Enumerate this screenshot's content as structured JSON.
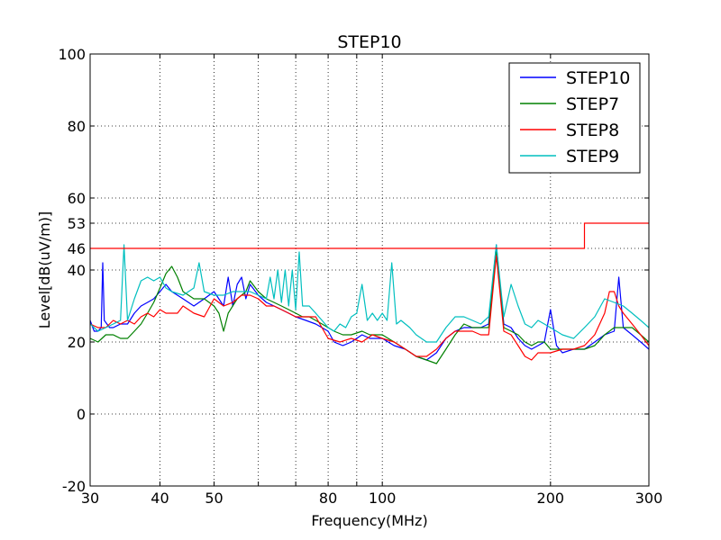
{
  "chart_data": {
    "type": "line",
    "title": "STEP10",
    "xlabel": "Frequency(MHz)",
    "ylabel": "Level[dB(uV/m)]",
    "xscale": "log",
    "xlim": [
      30,
      300
    ],
    "ylim": [
      -20,
      100
    ],
    "xticks": [
      30,
      40,
      50,
      60,
      70,
      80,
      90,
      100,
      200,
      300
    ],
    "xtick_labels": [
      "30",
      "40",
      "50",
      "",
      "",
      "80",
      "",
      "100",
      "200",
      "300"
    ],
    "yticks": [
      -20,
      0,
      20,
      40,
      46,
      53,
      60,
      80,
      100
    ],
    "ytick_labels": [
      "-20",
      "0",
      "20",
      "40",
      "46",
      "53",
      "60",
      "80",
      "100"
    ],
    "grid": true,
    "legend_position": "upper-right",
    "limit_line": {
      "color": "#ff0000",
      "points": [
        [
          30,
          46
        ],
        [
          230,
          46
        ],
        [
          230,
          53
        ],
        [
          300,
          53
        ]
      ]
    },
    "series": [
      {
        "name": "STEP10",
        "color": "#0000ff",
        "points": [
          [
            30,
            26
          ],
          [
            30.5,
            23
          ],
          [
            31,
            23
          ],
          [
            31.4,
            24
          ],
          [
            31.6,
            42
          ],
          [
            31.8,
            26
          ],
          [
            32.5,
            24
          ],
          [
            33,
            24
          ],
          [
            34,
            25
          ],
          [
            35,
            25
          ],
          [
            36,
            28
          ],
          [
            37,
            30
          ],
          [
            38,
            31
          ],
          [
            39,
            32
          ],
          [
            40,
            34
          ],
          [
            41,
            36
          ],
          [
            42,
            34
          ],
          [
            44,
            32
          ],
          [
            46,
            30
          ],
          [
            48,
            32
          ],
          [
            50,
            34
          ],
          [
            52,
            30
          ],
          [
            53,
            38
          ],
          [
            54,
            30
          ],
          [
            55,
            36
          ],
          [
            56,
            38
          ],
          [
            57,
            32
          ],
          [
            58,
            36
          ],
          [
            60,
            33
          ],
          [
            62,
            31
          ],
          [
            64,
            30
          ],
          [
            66,
            29
          ],
          [
            68,
            28
          ],
          [
            70,
            27
          ],
          [
            73,
            26
          ],
          [
            76,
            25
          ],
          [
            80,
            23
          ],
          [
            82,
            20
          ],
          [
            85,
            19
          ],
          [
            88,
            20
          ],
          [
            92,
            22
          ],
          [
            95,
            21
          ],
          [
            100,
            21
          ],
          [
            105,
            19
          ],
          [
            110,
            18
          ],
          [
            115,
            16
          ],
          [
            120,
            15
          ],
          [
            125,
            17
          ],
          [
            130,
            21
          ],
          [
            135,
            23
          ],
          [
            140,
            24
          ],
          [
            145,
            24
          ],
          [
            150,
            24
          ],
          [
            155,
            25
          ],
          [
            160,
            47
          ],
          [
            165,
            25
          ],
          [
            170,
            24
          ],
          [
            175,
            21
          ],
          [
            180,
            19
          ],
          [
            185,
            18
          ],
          [
            190,
            19
          ],
          [
            195,
            20
          ],
          [
            200,
            29
          ],
          [
            205,
            19
          ],
          [
            210,
            17
          ],
          [
            220,
            18
          ],
          [
            230,
            18
          ],
          [
            240,
            20
          ],
          [
            250,
            22
          ],
          [
            260,
            23
          ],
          [
            265,
            38
          ],
          [
            270,
            24
          ],
          [
            280,
            22
          ],
          [
            290,
            20
          ],
          [
            300,
            18
          ]
        ]
      },
      {
        "name": "STEP7",
        "color": "#008000",
        "points": [
          [
            30,
            21
          ],
          [
            31,
            20
          ],
          [
            32,
            22
          ],
          [
            33,
            22
          ],
          [
            34,
            21
          ],
          [
            35,
            21
          ],
          [
            36,
            23
          ],
          [
            37,
            25
          ],
          [
            38,
            28
          ],
          [
            39,
            31
          ],
          [
            40,
            35
          ],
          [
            41,
            39
          ],
          [
            42,
            41
          ],
          [
            43,
            38
          ],
          [
            44,
            34
          ],
          [
            45,
            33
          ],
          [
            46,
            32
          ],
          [
            48,
            32
          ],
          [
            50,
            30
          ],
          [
            51,
            28
          ],
          [
            52,
            23
          ],
          [
            53,
            28
          ],
          [
            55,
            32
          ],
          [
            57,
            34
          ],
          [
            58,
            37
          ],
          [
            60,
            34
          ],
          [
            62,
            32
          ],
          [
            64,
            31
          ],
          [
            66,
            30
          ],
          [
            68,
            29
          ],
          [
            70,
            28
          ],
          [
            72,
            27
          ],
          [
            74,
            27
          ],
          [
            76,
            26
          ],
          [
            78,
            25
          ],
          [
            80,
            24
          ],
          [
            82,
            23
          ],
          [
            85,
            22
          ],
          [
            88,
            22
          ],
          [
            92,
            23
          ],
          [
            95,
            22
          ],
          [
            100,
            22
          ],
          [
            105,
            20
          ],
          [
            110,
            18
          ],
          [
            115,
            16
          ],
          [
            120,
            15
          ],
          [
            125,
            14
          ],
          [
            130,
            18
          ],
          [
            135,
            22
          ],
          [
            140,
            25
          ],
          [
            145,
            24
          ],
          [
            150,
            24
          ],
          [
            155,
            24
          ],
          [
            160,
            45
          ],
          [
            165,
            24
          ],
          [
            170,
            23
          ],
          [
            175,
            22
          ],
          [
            180,
            20
          ],
          [
            185,
            19
          ],
          [
            190,
            20
          ],
          [
            195,
            20
          ],
          [
            200,
            18
          ],
          [
            210,
            18
          ],
          [
            220,
            18
          ],
          [
            230,
            18
          ],
          [
            240,
            19
          ],
          [
            250,
            22
          ],
          [
            260,
            24
          ],
          [
            270,
            24
          ],
          [
            280,
            24
          ],
          [
            290,
            22
          ],
          [
            300,
            20
          ]
        ]
      },
      {
        "name": "STEP8",
        "color": "#ff0000",
        "points": [
          [
            30,
            25
          ],
          [
            31,
            24
          ],
          [
            32,
            24
          ],
          [
            33,
            26
          ],
          [
            34,
            25
          ],
          [
            35,
            26
          ],
          [
            36,
            25
          ],
          [
            37,
            27
          ],
          [
            38,
            28
          ],
          [
            39,
            27
          ],
          [
            40,
            29
          ],
          [
            41,
            28
          ],
          [
            42,
            28
          ],
          [
            43,
            28
          ],
          [
            44,
            30
          ],
          [
            46,
            28
          ],
          [
            48,
            27
          ],
          [
            50,
            32
          ],
          [
            52,
            30
          ],
          [
            54,
            31
          ],
          [
            56,
            33
          ],
          [
            58,
            33
          ],
          [
            60,
            32
          ],
          [
            62,
            30
          ],
          [
            64,
            30
          ],
          [
            66,
            29
          ],
          [
            68,
            28
          ],
          [
            70,
            27
          ],
          [
            73,
            27
          ],
          [
            76,
            27
          ],
          [
            80,
            21
          ],
          [
            84,
            20
          ],
          [
            88,
            21
          ],
          [
            92,
            20
          ],
          [
            96,
            22
          ],
          [
            100,
            21
          ],
          [
            105,
            20
          ],
          [
            110,
            18
          ],
          [
            115,
            16
          ],
          [
            120,
            16
          ],
          [
            125,
            18
          ],
          [
            130,
            21
          ],
          [
            135,
            23
          ],
          [
            140,
            23
          ],
          [
            145,
            23
          ],
          [
            150,
            22
          ],
          [
            155,
            22
          ],
          [
            160,
            44
          ],
          [
            165,
            23
          ],
          [
            170,
            22
          ],
          [
            175,
            19
          ],
          [
            180,
            16
          ],
          [
            185,
            15
          ],
          [
            190,
            17
          ],
          [
            195,
            17
          ],
          [
            200,
            17
          ],
          [
            210,
            18
          ],
          [
            220,
            18
          ],
          [
            230,
            19
          ],
          [
            240,
            22
          ],
          [
            250,
            28
          ],
          [
            255,
            34
          ],
          [
            260,
            34
          ],
          [
            265,
            30
          ],
          [
            270,
            28
          ],
          [
            280,
            25
          ],
          [
            290,
            22
          ],
          [
            300,
            19
          ]
        ]
      },
      {
        "name": "STEP9",
        "color": "#00bfbf",
        "points": [
          [
            30,
            25
          ],
          [
            31,
            23
          ],
          [
            32,
            24
          ],
          [
            33,
            25
          ],
          [
            34,
            26
          ],
          [
            34.5,
            47
          ],
          [
            35,
            26
          ],
          [
            36,
            32
          ],
          [
            37,
            37
          ],
          [
            38,
            38
          ],
          [
            39,
            37
          ],
          [
            40,
            38
          ],
          [
            41,
            35
          ],
          [
            42,
            34
          ],
          [
            44,
            33
          ],
          [
            46,
            35
          ],
          [
            47,
            42
          ],
          [
            48,
            34
          ],
          [
            50,
            33
          ],
          [
            52,
            33
          ],
          [
            54,
            34
          ],
          [
            56,
            34
          ],
          [
            58,
            34
          ],
          [
            60,
            33
          ],
          [
            62,
            32
          ],
          [
            63,
            38
          ],
          [
            64,
            32
          ],
          [
            65,
            40
          ],
          [
            66,
            31
          ],
          [
            67,
            40
          ],
          [
            68,
            30
          ],
          [
            69,
            40
          ],
          [
            70,
            29
          ],
          [
            71,
            45
          ],
          [
            72,
            30
          ],
          [
            74,
            30
          ],
          [
            76,
            28
          ],
          [
            78,
            26
          ],
          [
            80,
            24
          ],
          [
            82,
            23
          ],
          [
            84,
            25
          ],
          [
            86,
            24
          ],
          [
            88,
            27
          ],
          [
            90,
            28
          ],
          [
            92,
            36
          ],
          [
            94,
            26
          ],
          [
            96,
            28
          ],
          [
            98,
            26
          ],
          [
            100,
            28
          ],
          [
            102,
            26
          ],
          [
            104,
            42
          ],
          [
            106,
            25
          ],
          [
            108,
            26
          ],
          [
            110,
            25
          ],
          [
            112,
            24
          ],
          [
            115,
            22
          ],
          [
            120,
            20
          ],
          [
            125,
            20
          ],
          [
            130,
            24
          ],
          [
            135,
            27
          ],
          [
            140,
            27
          ],
          [
            145,
            26
          ],
          [
            150,
            25
          ],
          [
            155,
            27
          ],
          [
            160,
            47
          ],
          [
            165,
            27
          ],
          [
            170,
            36
          ],
          [
            175,
            30
          ],
          [
            180,
            25
          ],
          [
            185,
            24
          ],
          [
            190,
            26
          ],
          [
            195,
            25
          ],
          [
            200,
            24
          ],
          [
            210,
            22
          ],
          [
            220,
            21
          ],
          [
            230,
            24
          ],
          [
            240,
            27
          ],
          [
            250,
            32
          ],
          [
            260,
            31
          ],
          [
            270,
            30
          ],
          [
            280,
            28
          ],
          [
            290,
            26
          ],
          [
            300,
            24
          ]
        ]
      }
    ]
  }
}
